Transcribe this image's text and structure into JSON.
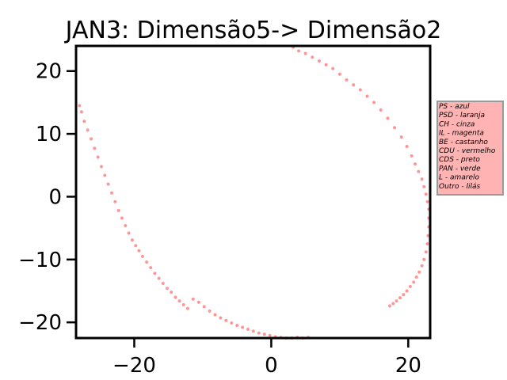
{
  "chart_data": {
    "type": "scatter",
    "title": "JAN3: Dimensão5-> Dimensão2",
    "xlabel": "",
    "ylabel": "",
    "xlim": [
      -28.5,
      23.2
    ],
    "ylim": [
      -22.5,
      24
    ],
    "x_ticks": [
      -20,
      0,
      20
    ],
    "y_ticks": [
      -20,
      -10,
      0,
      10,
      20
    ],
    "x_tick_labels": [
      "−20",
      "0",
      "20"
    ],
    "y_tick_labels": [
      "−20",
      "−10",
      "0",
      "10",
      "20"
    ],
    "grid": false,
    "legend_placement": "outside-right",
    "legend_entries": [
      "PS - azul",
      "PSD - laranja",
      "CH - cinza",
      "IL - magenta",
      "BE - castanho",
      "CDU - vermelho",
      "CDS - preto",
      "PAN - verde",
      "L - amarelo",
      "Outro - lilás"
    ],
    "marker_color": "#ff2a2a",
    "legend_background": "#ffb3b3",
    "legend_border": "#999999",
    "series": [
      {
        "x": [
          -28.0,
          -27.7,
          -27.3,
          -26.8,
          -26.3,
          -25.8,
          -25.3,
          -24.8,
          -24.3,
          -23.8,
          -23.3,
          -22.8,
          -22.3,
          -21.8,
          -21.3,
          -20.8,
          -20.3,
          -19.8,
          -19.3,
          -18.8,
          -18.2,
          -17.6,
          -17.0,
          -16.4,
          -15.8,
          -15.2,
          -14.6,
          -14.0,
          -13.4,
          -12.8,
          -12.2,
          -11.4,
          -10.6,
          -9.8,
          -9.0,
          -8.2,
          -7.4,
          -6.6,
          -5.8,
          -5.0,
          -4.2,
          -3.4,
          -2.6,
          -1.8,
          -1.0,
          -0.2,
          0.6,
          1.4,
          2.2,
          3.0,
          3.8,
          4.6,
          5.4
        ],
        "y": [
          14.5,
          13.5,
          12.0,
          10.6,
          9.2,
          7.7,
          6.3,
          4.8,
          3.4,
          2.0,
          0.6,
          -0.8,
          -2.2,
          -3.4,
          -4.6,
          -5.8,
          -6.9,
          -7.8,
          -8.6,
          -9.5,
          -10.4,
          -11.3,
          -12.2,
          -13.0,
          -13.8,
          -14.6,
          -15.2,
          -16.0,
          -16.6,
          -17.2,
          -17.8,
          -16.3,
          -16.8,
          -17.5,
          -18.2,
          -18.8,
          -19.3,
          -19.7,
          -20.1,
          -20.5,
          -20.8,
          -21.1,
          -21.4,
          -21.7,
          -21.9,
          -22.1,
          -22.3,
          -22.4,
          -22.5,
          -22.5,
          -22.4,
          -22.5,
          -22.4
        ]
      },
      {
        "x": [
          3.2,
          4.0,
          5.0,
          6.0,
          7.0,
          8.0,
          9.0,
          10.0,
          11.0,
          12.0,
          13.0,
          14.0,
          15.0,
          16.0,
          17.0,
          18.0,
          19.0,
          19.8,
          20.5,
          21.0,
          21.5,
          22.0,
          22.3,
          22.6,
          22.8,
          23.0,
          23.0,
          23.0,
          22.9,
          22.8,
          22.6,
          22.3,
          22.0,
          21.6,
          21.2,
          20.8,
          20.3,
          19.8,
          19.3,
          18.8,
          18.3,
          17.8,
          17.3
        ],
        "y": [
          23.8,
          23.2,
          22.8,
          22.2,
          21.6,
          21.0,
          20.4,
          19.5,
          18.6,
          17.8,
          17.0,
          16.0,
          15.0,
          13.8,
          12.5,
          11.0,
          9.5,
          8.0,
          6.5,
          5.2,
          4.0,
          2.8,
          1.6,
          0.4,
          -0.8,
          -2.0,
          -3.4,
          -4.8,
          -6.2,
          -7.5,
          -8.8,
          -10.0,
          -11.0,
          -12.0,
          -12.8,
          -13.6,
          -14.3,
          -15.0,
          -15.6,
          -16.1,
          -16.6,
          -17.0,
          -17.4
        ]
      }
    ]
  }
}
